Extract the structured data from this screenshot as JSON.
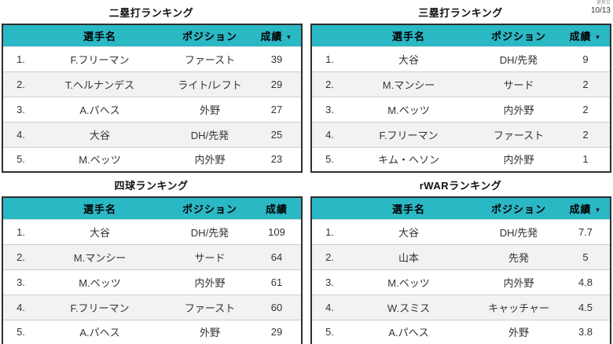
{
  "meta": {
    "update_label": "更新日",
    "update_date": "10/13"
  },
  "icons": {
    "sort_caret": "▼"
  },
  "colors": {
    "header_bg": "#2bb8c5",
    "row_alt_bg": "#f2f2f2",
    "table_border": "#2e2e2e"
  },
  "columns": {
    "player": "選手名",
    "position": "ポジション",
    "score": "成績"
  },
  "tables": [
    {
      "title": "二塁打ランキング",
      "sortable_score": true,
      "rows": [
        {
          "rank": "1.",
          "player": "F.フリーマン",
          "position": "ファースト",
          "score": "39"
        },
        {
          "rank": "2.",
          "player": "T.ヘルナンデス",
          "position": "ライト/レフト",
          "score": "29"
        },
        {
          "rank": "3.",
          "player": "A.パヘス",
          "position": "外野",
          "score": "27"
        },
        {
          "rank": "4.",
          "player": "大谷",
          "position": "DH/先発",
          "score": "25"
        },
        {
          "rank": "5.",
          "player": "M.ベッツ",
          "position": "内外野",
          "score": "23"
        }
      ]
    },
    {
      "title": "三塁打ランキング",
      "sortable_score": true,
      "rows": [
        {
          "rank": "1.",
          "player": "大谷",
          "position": "DH/先発",
          "score": "9"
        },
        {
          "rank": "2.",
          "player": "M.マンシー",
          "position": "サード",
          "score": "2"
        },
        {
          "rank": "3.",
          "player": "M.ベッツ",
          "position": "内外野",
          "score": "2"
        },
        {
          "rank": "4.",
          "player": "F.フリーマン",
          "position": "ファースト",
          "score": "2"
        },
        {
          "rank": "5.",
          "player": "キム・ヘソン",
          "position": "内外野",
          "score": "1"
        }
      ]
    },
    {
      "title": "四球ランキング",
      "sortable_score": false,
      "rows": [
        {
          "rank": "1.",
          "player": "大谷",
          "position": "DH/先発",
          "score": "109"
        },
        {
          "rank": "2.",
          "player": "M.マンシー",
          "position": "サード",
          "score": "64"
        },
        {
          "rank": "3.",
          "player": "M.ベッツ",
          "position": "内外野",
          "score": "61"
        },
        {
          "rank": "4.",
          "player": "F.フリーマン",
          "position": "ファースト",
          "score": "60"
        },
        {
          "rank": "5.",
          "player": "A.パヘス",
          "position": "外野",
          "score": "29"
        }
      ]
    },
    {
      "title": "rWARランキング",
      "sortable_score": true,
      "rows": [
        {
          "rank": "1.",
          "player": "大谷",
          "position": "DH/先発",
          "score": "7.7"
        },
        {
          "rank": "2.",
          "player": "山本",
          "position": "先発",
          "score": "5"
        },
        {
          "rank": "3.",
          "player": "M.ベッツ",
          "position": "内外野",
          "score": "4.8"
        },
        {
          "rank": "4.",
          "player": "W.スミス",
          "position": "キャッチャー",
          "score": "4.5"
        },
        {
          "rank": "5.",
          "player": "A.パヘス",
          "position": "外野",
          "score": "3.8"
        }
      ]
    }
  ]
}
